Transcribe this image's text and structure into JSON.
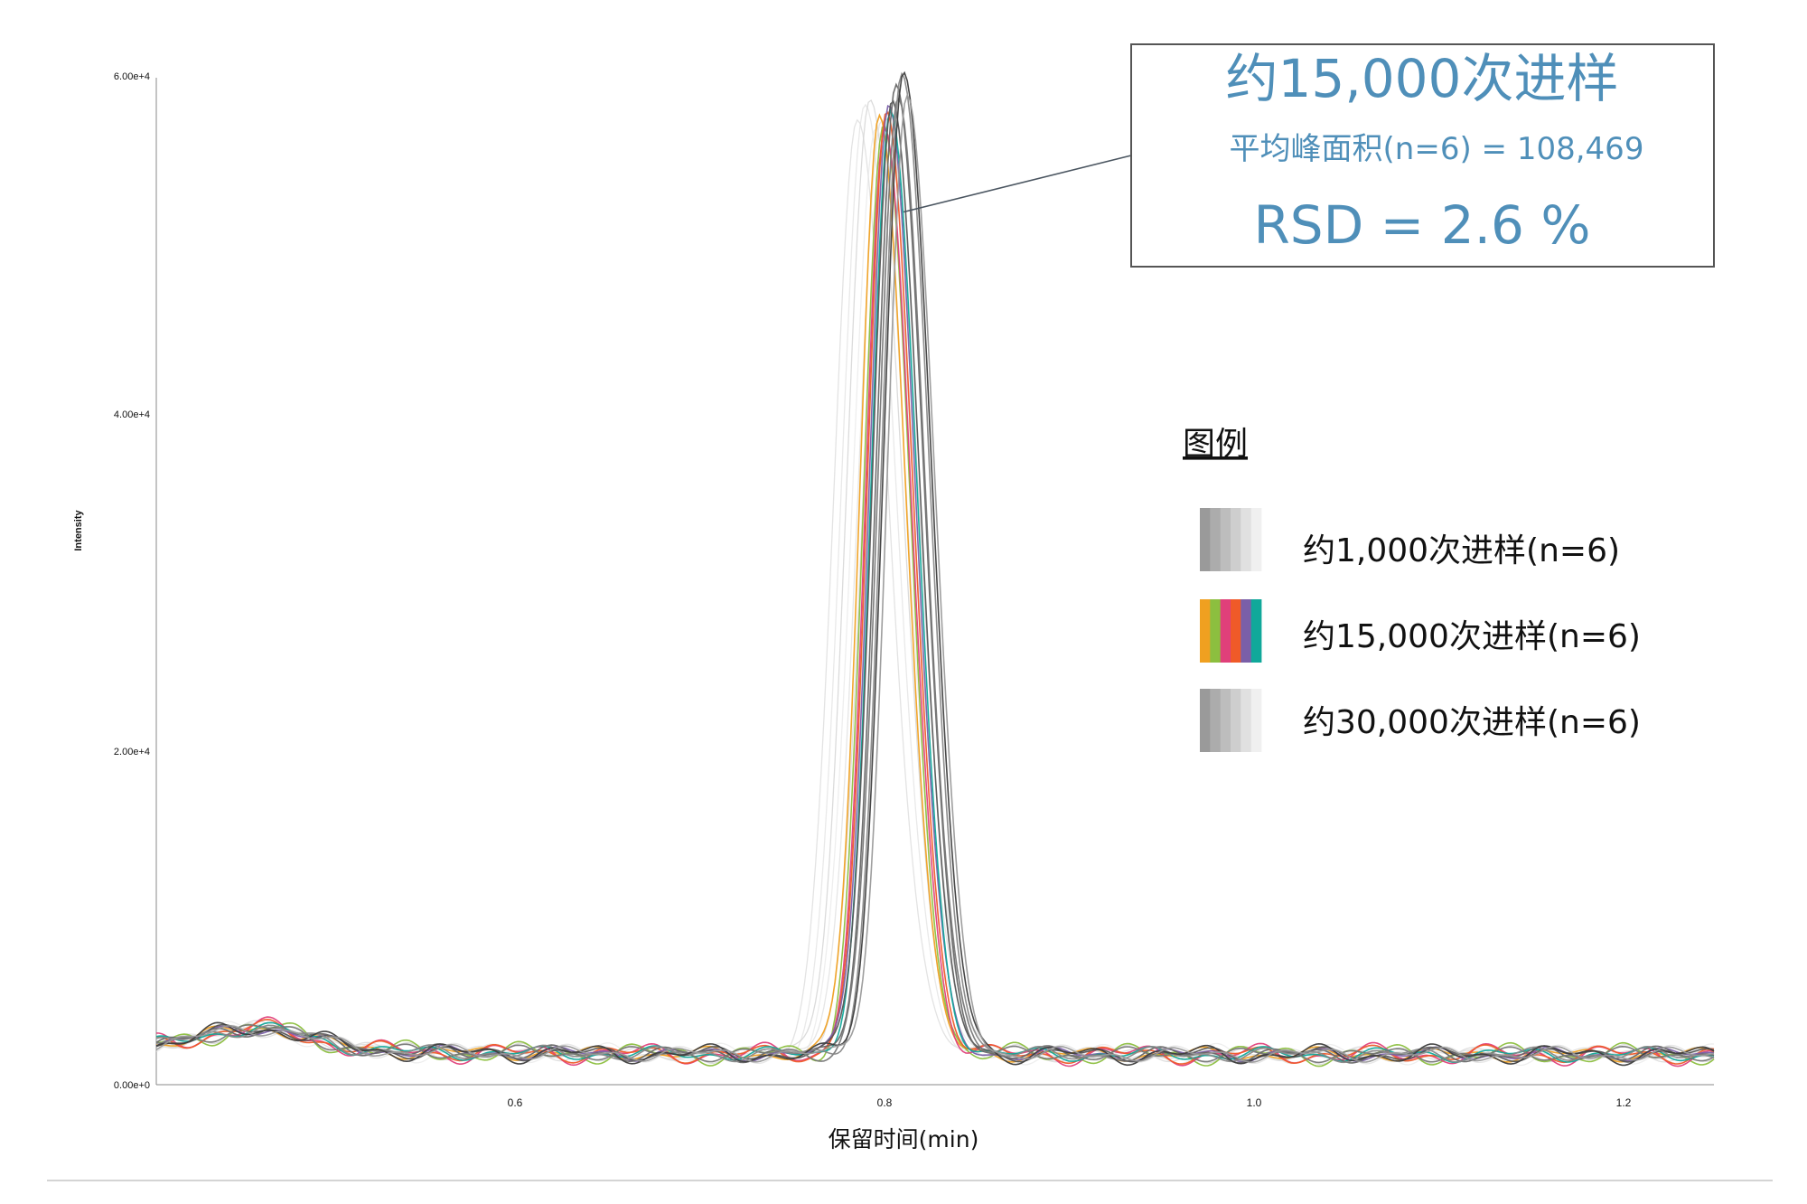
{
  "chart_data": {
    "type": "line",
    "title": "",
    "xlabel": "保留时间(min)",
    "ylabel": "Intensity",
    "xlim": [
      0.41,
      1.25
    ],
    "ylim": [
      0,
      60000
    ],
    "x_ticks": [
      {
        "value": 0.6,
        "label": "0.6"
      },
      {
        "value": 0.8,
        "label": "0.8"
      },
      {
        "value": 1.0,
        "label": "1.0"
      },
      {
        "value": 1.2,
        "label": "1.2"
      }
    ],
    "y_ticks": [
      {
        "value": 0,
        "label": "0.00e+0"
      },
      {
        "value": 20000,
        "label": "2.00e+4"
      },
      {
        "value": 40000,
        "label": "4.00e+4"
      },
      {
        "value": 60000,
        "label": "6.00e+4"
      }
    ],
    "grid": false,
    "legend": {
      "title": "图例",
      "position": "right",
      "entries": [
        {
          "label": "约1,000次进样(n=6)",
          "swatch_colors": [
            "#9a9a9a",
            "#acacac",
            "#bdbdbd",
            "#cecece",
            "#e0e0e0",
            "#f0f0f0"
          ]
        },
        {
          "label": "约15,000次进样(n=6)",
          "swatch_colors": [
            "#f0a020",
            "#8cbf3f",
            "#e0407a",
            "#f05a28",
            "#7a5fa8",
            "#10a89a"
          ]
        },
        {
          "label": "约30,000次进样(n=6)",
          "swatch_colors": [
            "#9a9a9a",
            "#acacac",
            "#bdbdbd",
            "#cecece",
            "#e0e0e0",
            "#f0f0f0"
          ]
        }
      ]
    },
    "annotation": {
      "title": "约15,000次进样",
      "subtitle": "平均峰面积(n=6) = 108,469",
      "rsd": "RSD = 2.6 %",
      "points_to": {
        "x": 0.813,
        "y": 52000
      }
    },
    "peak_center_approx": 0.803,
    "peak_height_approx": 57000,
    "baseline_approx": 2000,
    "series_groups": [
      {
        "group": "约1,000次进样(n=6)",
        "colors": [
          "#d9d9d9",
          "#e2e2e2",
          "#cfcfcf",
          "#e8e8e8",
          "#dddddd",
          "#d4d4d4"
        ],
        "centers": [
          0.788,
          0.792,
          0.795,
          0.798,
          0.801,
          0.804
        ],
        "heights": [
          55500,
          56200,
          56800,
          55000,
          56000,
          55800
        ],
        "widths": [
          0.0125,
          0.0125,
          0.0125,
          0.0125,
          0.0125,
          0.0125
        ]
      },
      {
        "group": "约15,000次进样(n=6)",
        "colors": [
          "#f0a020",
          "#8cbf3f",
          "#e0407a",
          "#f05a28",
          "#7a5fa8",
          "#10a89a"
        ],
        "centers": [
          0.8,
          0.802,
          0.803,
          0.804,
          0.805,
          0.806
        ],
        "heights": [
          56000,
          55200,
          54600,
          55800,
          56600,
          56000
        ],
        "widths": [
          0.0105,
          0.0105,
          0.0105,
          0.0105,
          0.0105,
          0.0105
        ]
      },
      {
        "group": "约30,000次进样(n=6)",
        "colors": [
          "#555555",
          "#666666",
          "#777777",
          "#888888",
          "#3d3d3d",
          "#999999"
        ],
        "centers": [
          0.807,
          0.809,
          0.81,
          0.812,
          0.813,
          0.815
        ],
        "heights": [
          57000,
          57800,
          56600,
          58400,
          59000,
          57200
        ],
        "widths": [
          0.0108,
          0.0108,
          0.0108,
          0.0108,
          0.0108,
          0.0108
        ]
      }
    ]
  }
}
